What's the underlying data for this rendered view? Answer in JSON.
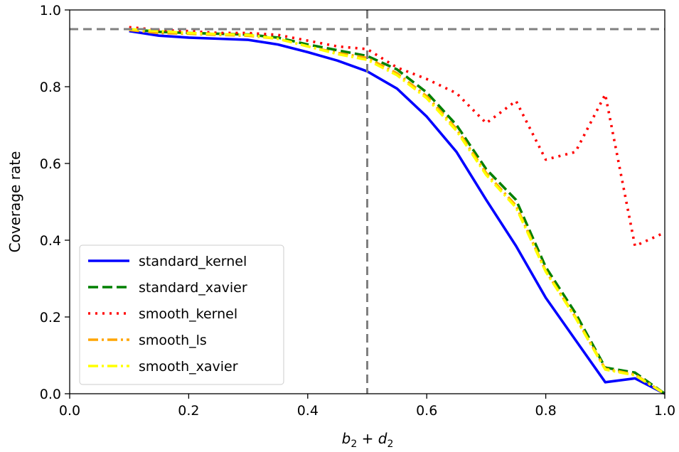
{
  "chart_data": {
    "type": "line",
    "xlabel_main": "b",
    "xlabel_sub1": "2",
    "xlabel_op": " + ",
    "xlabel_main2": "d",
    "xlabel_sub2": "2",
    "ylabel": "Coverage rate",
    "xlim": [
      0.0,
      1.0
    ],
    "ylim": [
      0.0,
      1.0
    ],
    "xticks": [
      "0.0",
      "0.2",
      "0.4",
      "0.6",
      "0.8",
      "1.0"
    ],
    "yticks": [
      "0.0",
      "0.2",
      "0.4",
      "0.6",
      "0.8",
      "1.0"
    ],
    "hline": 0.95,
    "vline": 0.5,
    "legend_position": "lower-left",
    "x": [
      0.1,
      0.15,
      0.2,
      0.25,
      0.3,
      0.35,
      0.4,
      0.45,
      0.5,
      0.55,
      0.6,
      0.65,
      0.7,
      0.75,
      0.8,
      0.85,
      0.9,
      0.95,
      1.0
    ],
    "series": [
      {
        "name": "standard_kernel",
        "color": "#0000ff",
        "style": "solid",
        "values": [
          0.945,
          0.933,
          0.928,
          0.925,
          0.922,
          0.91,
          0.89,
          0.868,
          0.84,
          0.795,
          0.722,
          0.63,
          0.505,
          0.385,
          0.25,
          0.14,
          0.03,
          0.04,
          0.0
        ]
      },
      {
        "name": "standard_xavier",
        "color": "#008000",
        "style": "dashed",
        "values": [
          0.95,
          0.943,
          0.94,
          0.938,
          0.936,
          0.928,
          0.91,
          0.895,
          0.88,
          0.845,
          0.785,
          0.7,
          0.585,
          0.505,
          0.33,
          0.21,
          0.068,
          0.055,
          0.0
        ]
      },
      {
        "name": "smooth_kernel",
        "color": "#ff0000",
        "style": "dotted",
        "values": [
          0.955,
          0.948,
          0.945,
          0.94,
          0.94,
          0.935,
          0.92,
          0.905,
          0.898,
          0.85,
          0.82,
          0.783,
          0.705,
          0.763,
          0.61,
          0.63,
          0.78,
          0.385,
          0.42
        ]
      },
      {
        "name": "smooth_ls",
        "color": "#ffa500",
        "style": "dashdot",
        "values": [
          0.948,
          0.94,
          0.938,
          0.935,
          0.933,
          0.925,
          0.905,
          0.888,
          0.875,
          0.835,
          0.775,
          0.69,
          0.575,
          0.49,
          0.32,
          0.2,
          0.065,
          0.05,
          0.0
        ]
      },
      {
        "name": "smooth_xavier",
        "color": "#ffff00",
        "style": "dashdot",
        "values": [
          0.95,
          0.945,
          0.94,
          0.937,
          0.935,
          0.925,
          0.905,
          0.885,
          0.87,
          0.83,
          0.77,
          0.685,
          0.57,
          0.485,
          0.318,
          0.198,
          0.063,
          0.048,
          0.0
        ]
      }
    ]
  }
}
